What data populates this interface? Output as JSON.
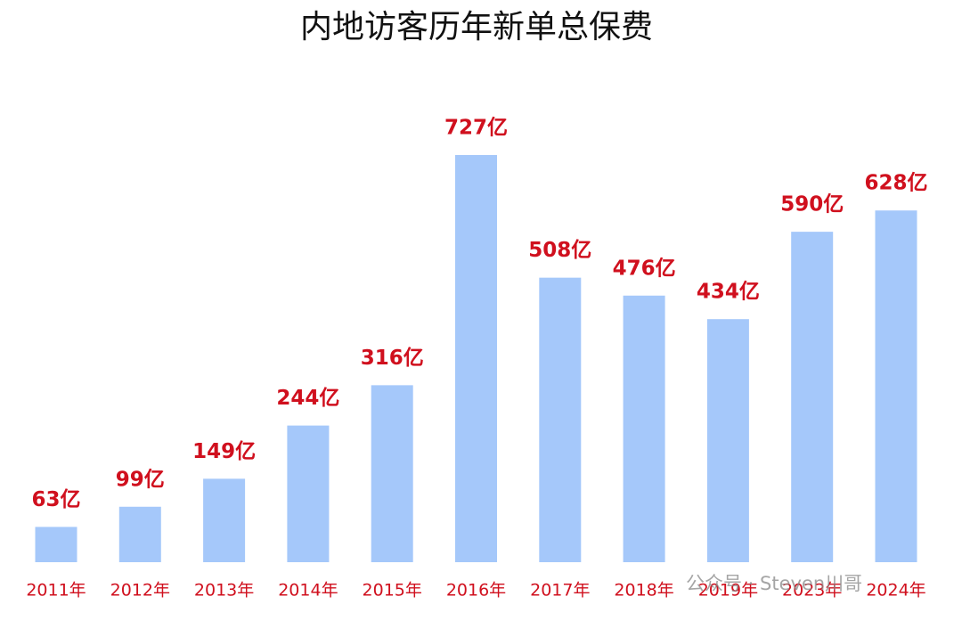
{
  "chart_data": {
    "type": "bar",
    "title": "内地访客历年新单总保费",
    "categories": [
      "2011年",
      "2012年",
      "2013年",
      "2014年",
      "2015年",
      "2016年",
      "2017年",
      "2018年",
      "2019年",
      "2023年",
      "2024年"
    ],
    "values": [
      63,
      99,
      149,
      244,
      316,
      727,
      508,
      476,
      434,
      590,
      628
    ],
    "value_labels": [
      "63亿",
      "99亿",
      "149亿",
      "244亿",
      "316亿",
      "727亿",
      "508亿",
      "476亿",
      "434亿",
      "590亿",
      "628亿"
    ],
    "color": "#a5c8fa",
    "label_color": "#d0101e",
    "watermark": "公众号 · Steven川哥"
  }
}
